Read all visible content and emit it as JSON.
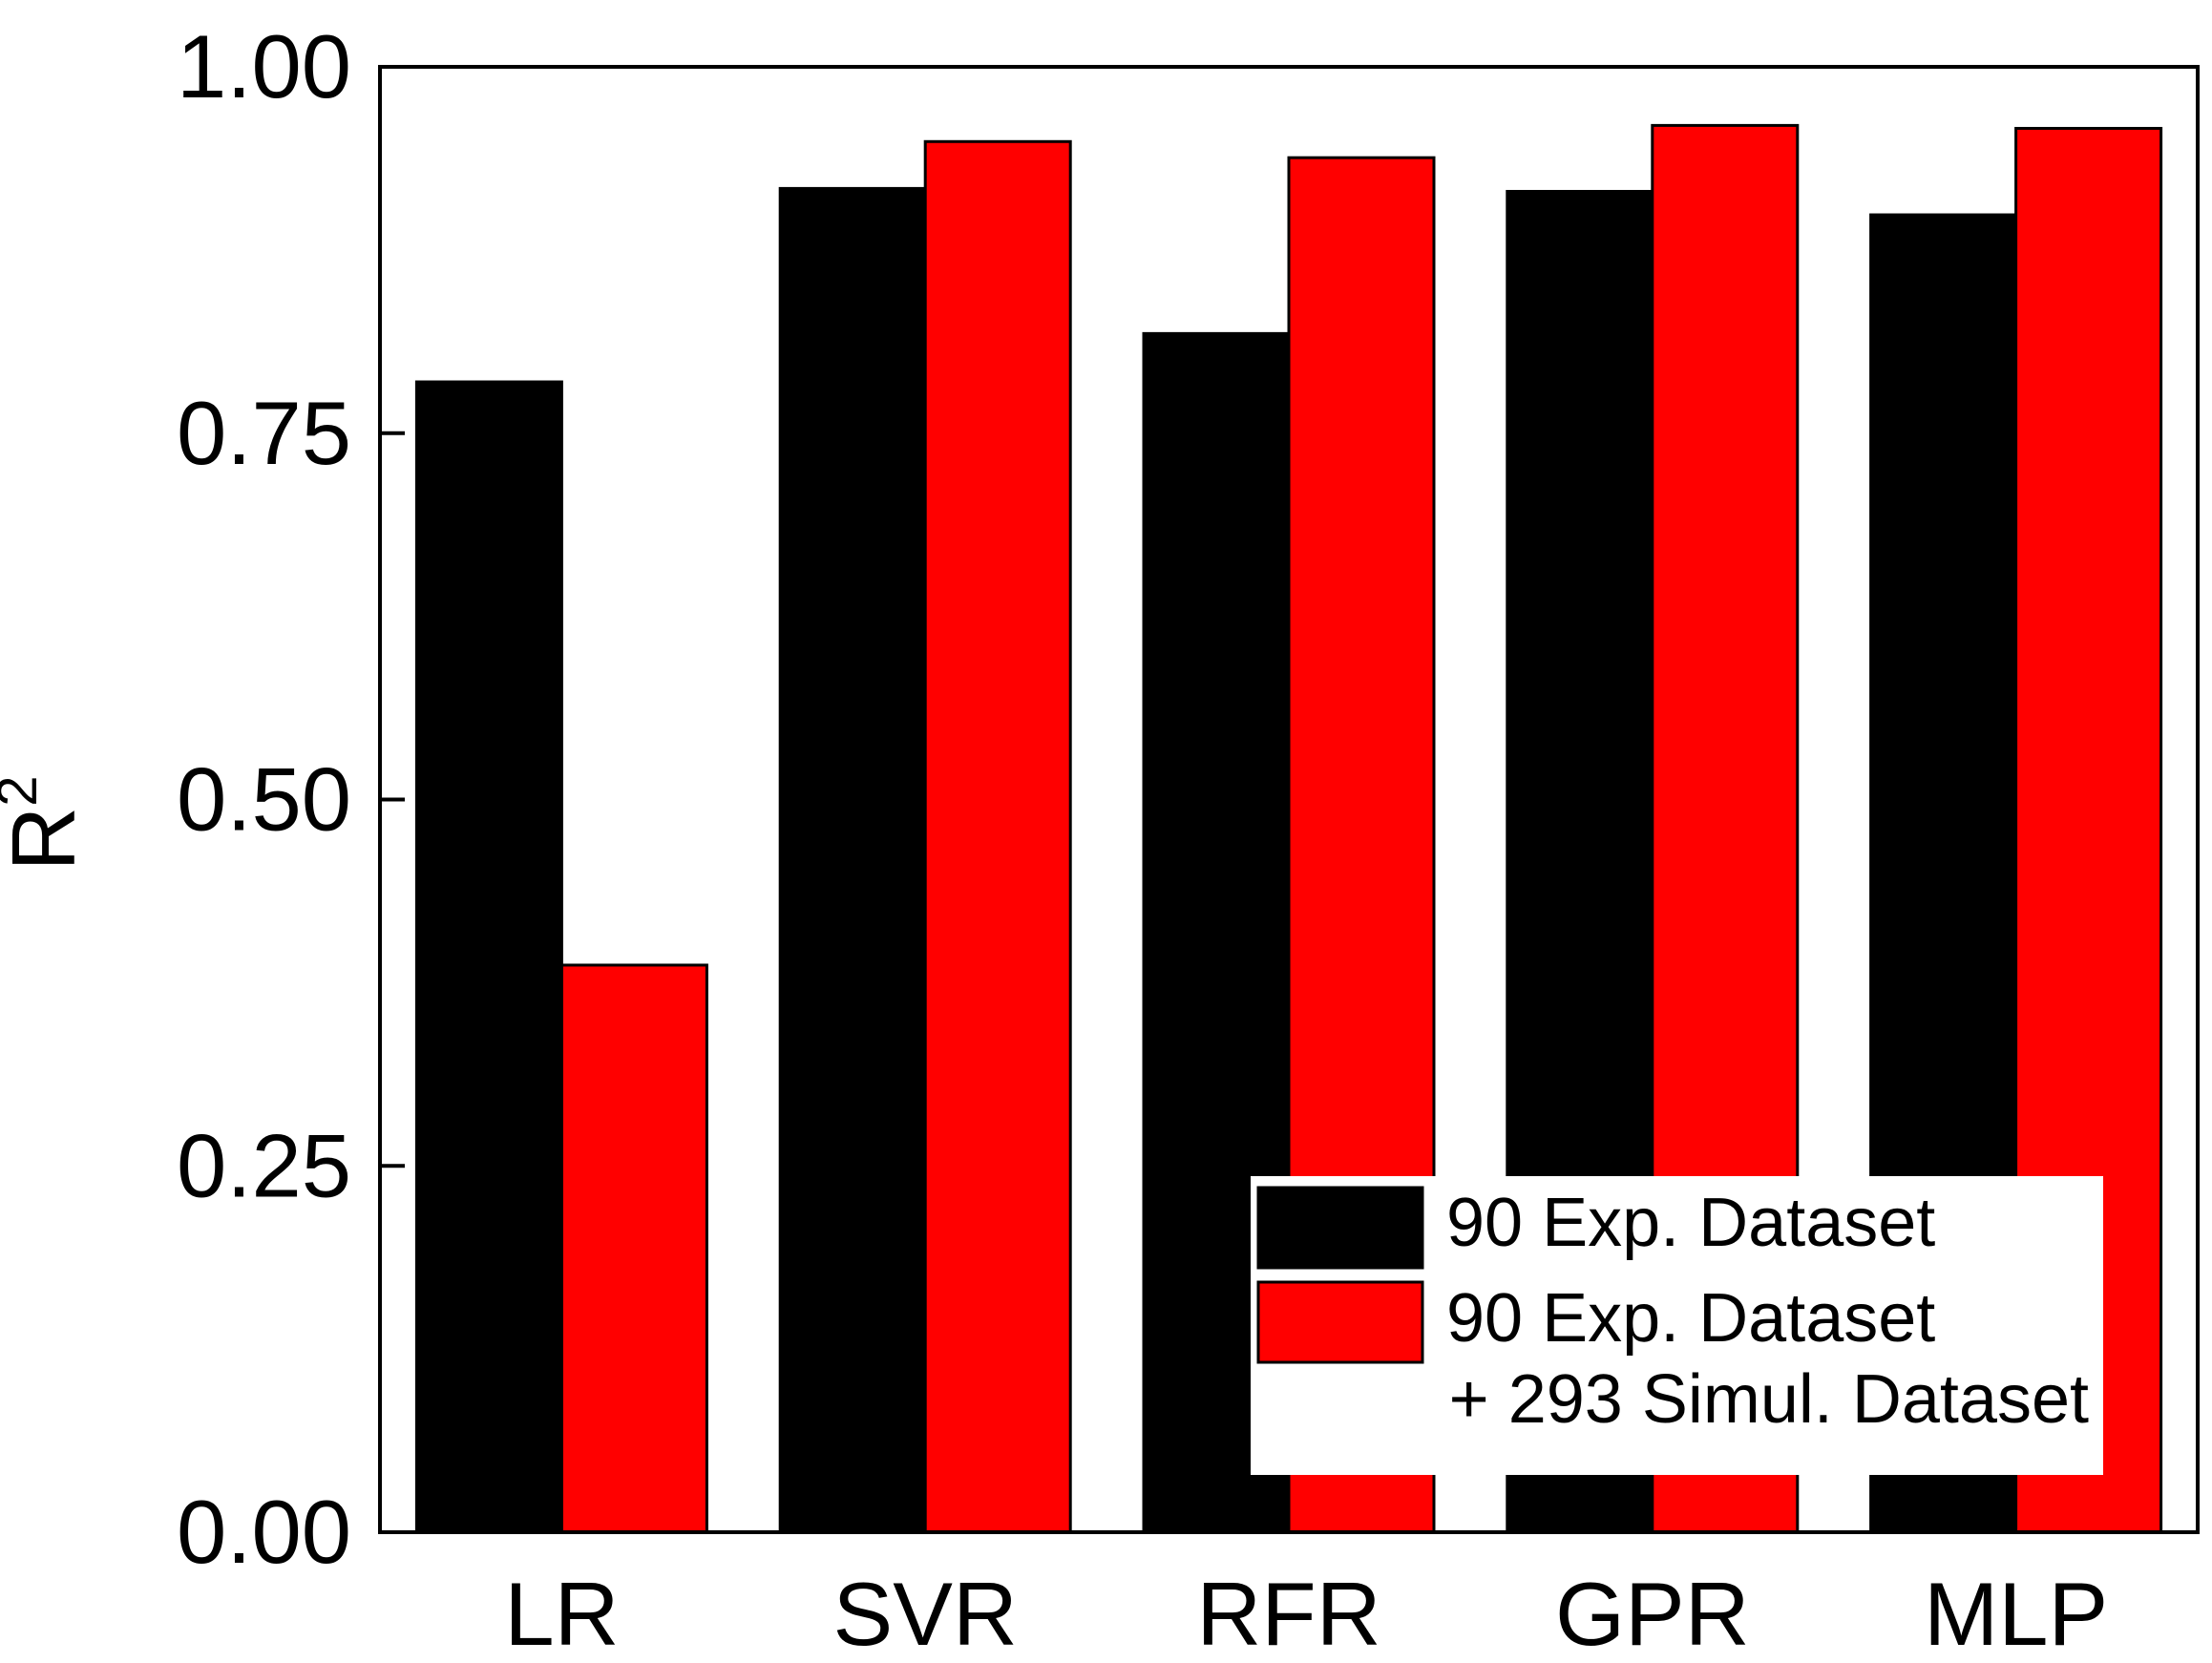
{
  "chart_data": {
    "type": "bar",
    "title": "",
    "xlabel": "",
    "ylabel": "R",
    "ylabel_superscript": "2",
    "ylim": [
      0.0,
      1.0
    ],
    "yticks": [
      0.0,
      0.25,
      0.5,
      0.75,
      1.0
    ],
    "ytick_labels": [
      "0.00",
      "0.25",
      "0.50",
      "0.75",
      "1.00"
    ],
    "grid": false,
    "legend_position": "bottom-right",
    "categories": [
      "LR",
      "SVR",
      "RFR",
      "GPR",
      "MLP"
    ],
    "series": [
      {
        "name": "90 Exp. Dataset",
        "legend_lines": [
          "90 Exp. Dataset"
        ],
        "color": "#000000",
        "values": [
          0.785,
          0.917,
          0.818,
          0.915,
          0.899
        ]
      },
      {
        "name": "90 Exp. Dataset + 293 Simul. Dataset",
        "legend_lines": [
          "90 Exp. Dataset",
          "+ 293 Simul. Dataset"
        ],
        "color": "#ff0000",
        "values": [
          0.387,
          0.949,
          0.938,
          0.96,
          0.958
        ]
      }
    ]
  }
}
